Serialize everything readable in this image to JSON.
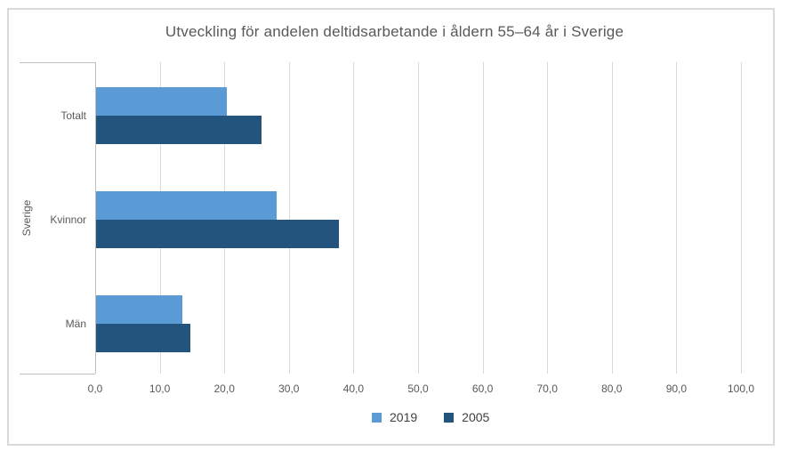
{
  "chart_data": {
    "type": "bar",
    "orientation": "horizontal",
    "title": "Utveckling för andelen deltidsarbetande i åldern 55–64 år i Sverige",
    "axis_group_label": "Sverige",
    "categories": [
      "Totalt",
      "Kvinnor",
      "Män"
    ],
    "series": [
      {
        "name": "2019",
        "color": "#5B9BD5",
        "values": [
          20.3,
          27.9,
          13.4
        ]
      },
      {
        "name": "2005",
        "color": "#23547E",
        "values": [
          25.6,
          37.6,
          14.6
        ]
      }
    ],
    "xlim": [
      0,
      100
    ],
    "x_tick_step": 10,
    "x_tick_labels": [
      "0,0",
      "10,0",
      "20,0",
      "30,0",
      "40,0",
      "50,0",
      "60,0",
      "70,0",
      "80,0",
      "90,0",
      "100,0"
    ],
    "grid": true,
    "legend_position": "bottom",
    "colors": {
      "gridline": "#D9D9D9",
      "axis_line": "#BFBFBF",
      "title_text": "#595959",
      "axis_text": "#595959",
      "legend_text": "#404040",
      "chart_border": "#D9D9D9"
    }
  }
}
